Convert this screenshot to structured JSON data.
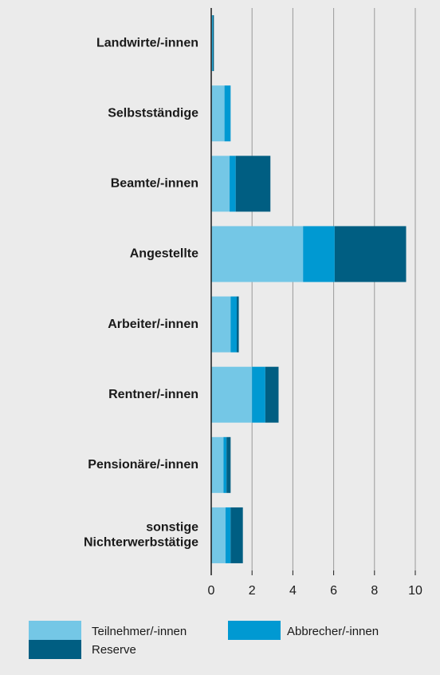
{
  "chart_data": {
    "type": "stacked_barh",
    "categories": [
      "Landwirte/-innen",
      "Selbstständige",
      "Beamte/-innen",
      "Angestellte",
      "Arbeiter/-innen",
      "Rentner/-innen",
      "Pensionäre/-innen",
      "sonstige Nichterwerbstätige"
    ],
    "series": [
      {
        "name": "Teilnehmer/-innen",
        "color": "#74c7e6",
        "values": [
          0.05,
          0.65,
          0.9,
          4.5,
          0.95,
          2.0,
          0.6,
          0.7
        ]
      },
      {
        "name": "Abbrecher/-innen",
        "color": "#0099d2",
        "values": [
          0.03,
          0.3,
          0.3,
          1.55,
          0.3,
          0.65,
          0.15,
          0.25
        ]
      },
      {
        "name": "Reserve",
        "color": "#005e82",
        "values": [
          0.05,
          0,
          1.7,
          3.5,
          0.1,
          0.65,
          0.2,
          0.6
        ]
      }
    ],
    "xlim": [
      0,
      10
    ],
    "xticks": [
      0,
      2,
      4,
      6,
      8,
      10
    ],
    "grid": true
  }
}
